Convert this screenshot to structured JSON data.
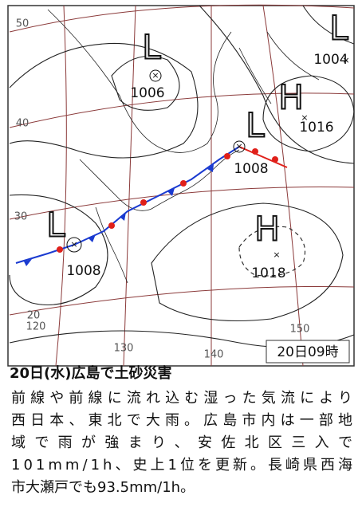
{
  "map": {
    "systems": [
      {
        "symbol": "L",
        "pressure": 1006
      },
      {
        "symbol": "L",
        "pressure": 1004
      },
      {
        "symbol": "H",
        "pressure": 1016
      },
      {
        "symbol": "L",
        "pressure": 1008
      },
      {
        "symbol": "L",
        "pressure": 1008
      },
      {
        "symbol": "H",
        "pressure": 1018
      }
    ],
    "latitude_labels": [
      "50",
      "40",
      "30",
      "20"
    ],
    "longitude_labels": [
      "120",
      "130",
      "140",
      "150"
    ],
    "timestamp": "20日09時"
  },
  "caption": {
    "title": "20日(水)広島で土砂災害",
    "body": [
      "前線や前線に流れ込む湿った気流により",
      "西日本、東北で大雨。広島市内は一部地",
      "域で雨が強まり、安佐北区三入で",
      "101mm/1h、史上1位を更新。長崎県西海",
      "市大瀬戸でも93.5mm/1h。"
    ]
  }
}
